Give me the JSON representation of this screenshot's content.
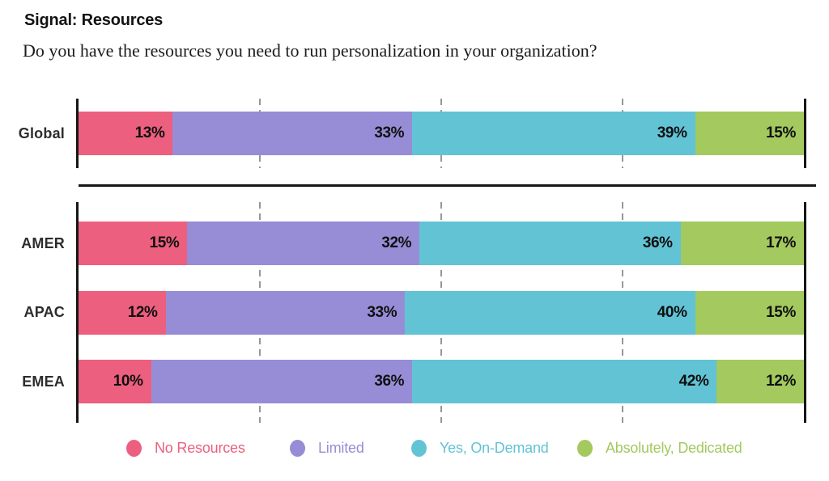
{
  "header": {
    "title": "Signal: Resources",
    "subtitle": "Do you have the resources you need to run personalization in your organization?"
  },
  "chart_data": {
    "type": "bar",
    "subtype": "horizontal-stacked",
    "unit": "%",
    "axis_range": [
      0,
      100
    ],
    "gridlines": [
      25,
      50,
      75
    ],
    "grid_style": "dashed",
    "legend_position": "bottom",
    "legend": [
      {
        "label": "No Resources",
        "color": "#EC5F7E"
      },
      {
        "label": "Limited",
        "color": "#968DD6"
      },
      {
        "label": "Yes, On-Demand",
        "color": "#62C3D5"
      },
      {
        "label": "Absolutely, Dedicated",
        "color": "#A3C95F"
      }
    ],
    "sections": [
      {
        "name": "global",
        "rows": [
          {
            "label": "Global",
            "values": [
              13,
              33,
              39,
              15
            ]
          }
        ]
      },
      {
        "name": "regions",
        "rows": [
          {
            "label": "AMER",
            "values": [
              15,
              32,
              36,
              17
            ]
          },
          {
            "label": "APAC",
            "values": [
              12,
              33,
              40,
              15
            ]
          },
          {
            "label": "EMEA",
            "values": [
              10,
              36,
              42,
              12
            ]
          }
        ]
      }
    ]
  }
}
